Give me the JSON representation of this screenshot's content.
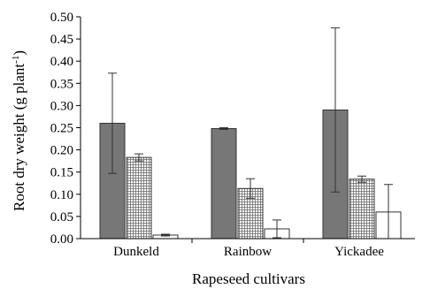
{
  "chart_data": {
    "type": "bar",
    "title": "",
    "xlabel": "Rapeseed cultivars",
    "ylabel": "Root dry weight (g plant",
    "ylabel_superscript": "-1",
    "ylabel_close": ")",
    "categories": [
      "Dunkeld",
      "Rainbow",
      "Yickadee"
    ],
    "ylim": [
      0,
      0.5
    ],
    "yticks": [
      "0.00",
      "0.05",
      "0.10",
      "0.15",
      "0.20",
      "0.25",
      "0.30",
      "0.35",
      "0.40",
      "0.45",
      "0.50"
    ],
    "grid": false,
    "series": [
      {
        "values": [
          0.26,
          0.248,
          0.29
        ],
        "errors": [
          0.113,
          0.002,
          0.185
        ],
        "color": "#777777",
        "fill": "solid"
      },
      {
        "values": [
          0.183,
          0.113,
          0.134
        ],
        "errors": [
          0.008,
          0.022,
          0.007
        ],
        "color": "#ffffff",
        "fill": "grid-hatch"
      },
      {
        "values": [
          0.008,
          0.022,
          0.06
        ],
        "errors": [
          0.002,
          0.02,
          0.062
        ],
        "color": "#ffffff",
        "fill": "none"
      }
    ]
  }
}
